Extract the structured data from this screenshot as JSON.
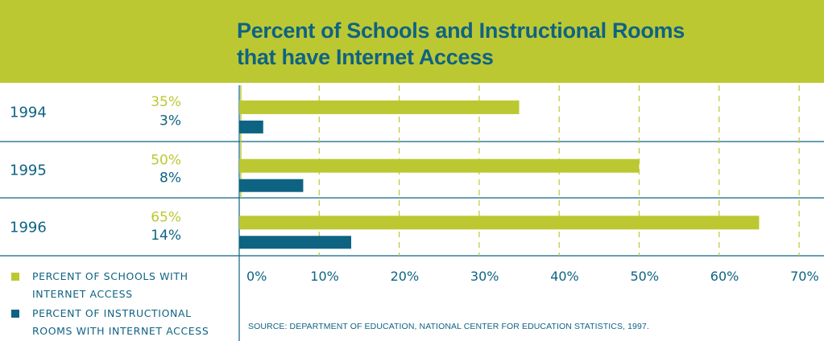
{
  "colors": {
    "header_bg": "#bcc832",
    "schools": "#bcc832",
    "rooms": "#0e6383",
    "text": "#0e6383",
    "grid": "#bcc832"
  },
  "chart_data": {
    "type": "bar",
    "orientation": "horizontal",
    "title": "Percent of Schools and Instructional Rooms that have Internet Access",
    "title_lines": [
      "Percent of Schools and Instructional Rooms",
      "that have Internet Access"
    ],
    "categories": [
      "1994",
      "1995",
      "1996"
    ],
    "series": [
      {
        "name": "PERCENT OF SCHOOLS WITH INTERNET ACCESS",
        "color": "#bcc832",
        "values": [
          35,
          50,
          65
        ],
        "labels": [
          "35%",
          "50%",
          "65%"
        ]
      },
      {
        "name": "PERCENT OF INSTRUCTIONAL ROOMS WITH INTERNET ACCESS",
        "color": "#0e6383",
        "values": [
          3,
          8,
          14
        ],
        "labels": [
          "3%",
          "8%",
          "14%"
        ]
      }
    ],
    "xlim": [
      0,
      70
    ],
    "x_ticks": [
      0,
      10,
      20,
      30,
      40,
      50,
      60,
      70
    ],
    "x_tick_labels": [
      "0%",
      "10%",
      "20%",
      "30%",
      "40%",
      "50%",
      "60%",
      "70%"
    ],
    "grid": "vertical dashed",
    "legend_position": "bottom-left"
  },
  "legend": {
    "items": [
      {
        "label_lines": [
          "PERCENT OF SCHOOLS WITH",
          "INTERNET ACCESS"
        ]
      },
      {
        "label_lines": [
          "PERCENT OF INSTRUCTIONAL",
          "ROOMS WITH INTERNET ACCESS"
        ]
      }
    ]
  },
  "source": "SOURCE: DEPARTMENT OF EDUCATION, NATIONAL CENTER FOR EDUCATION STATISTICS, 1997."
}
